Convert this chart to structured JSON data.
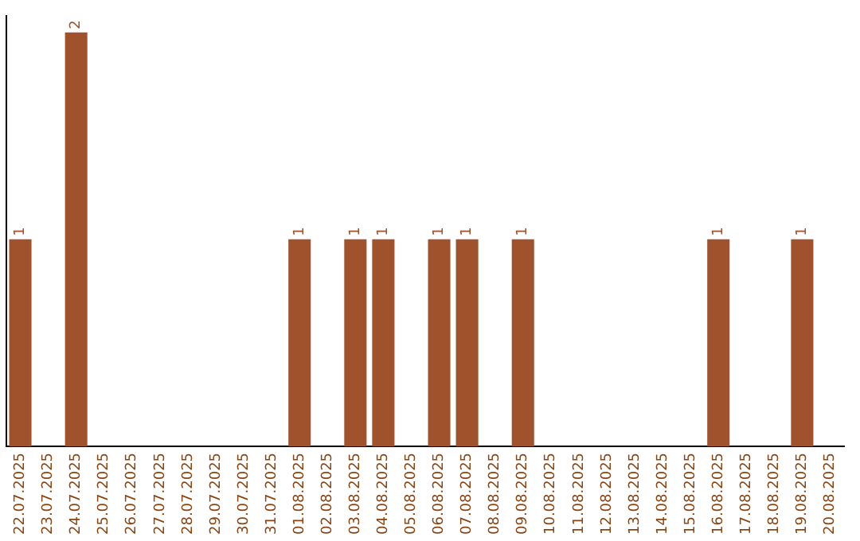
{
  "chart_data": {
    "type": "bar",
    "categories": [
      "22.07.2025",
      "23.07.2025",
      "24.07.2025",
      "25.07.2025",
      "26.07.2025",
      "27.07.2025",
      "28.07.2025",
      "29.07.2025",
      "30.07.2025",
      "31.07.2025",
      "01.08.2025",
      "02.08.2025",
      "03.08.2025",
      "04.08.2025",
      "05.08.2025",
      "06.08.2025",
      "07.08.2025",
      "08.08.2025",
      "09.08.2025",
      "10.08.2025",
      "11.08.2025",
      "12.08.2025",
      "13.08.2025",
      "14.08.2025",
      "15.08.2025",
      "16.08.2025",
      "17.08.2025",
      "18.08.2025",
      "19.08.2025",
      "20.08.2025"
    ],
    "values": [
      1,
      0,
      2,
      0,
      0,
      0,
      0,
      0,
      0,
      0,
      1,
      0,
      1,
      1,
      0,
      1,
      1,
      0,
      1,
      0,
      0,
      0,
      0,
      0,
      0,
      1,
      0,
      0,
      1,
      0
    ],
    "value_labels": [
      "1",
      null,
      "2",
      null,
      null,
      null,
      null,
      null,
      null,
      null,
      "1",
      null,
      "1",
      "1",
      null,
      "1",
      "1",
      null,
      "1",
      null,
      null,
      null,
      null,
      null,
      null,
      "1",
      null,
      null,
      "1",
      null
    ],
    "color": "#a0522d",
    "ylim": [
      0,
      2.08
    ],
    "grid": false,
    "legend": false,
    "tick_labels": "x"
  }
}
